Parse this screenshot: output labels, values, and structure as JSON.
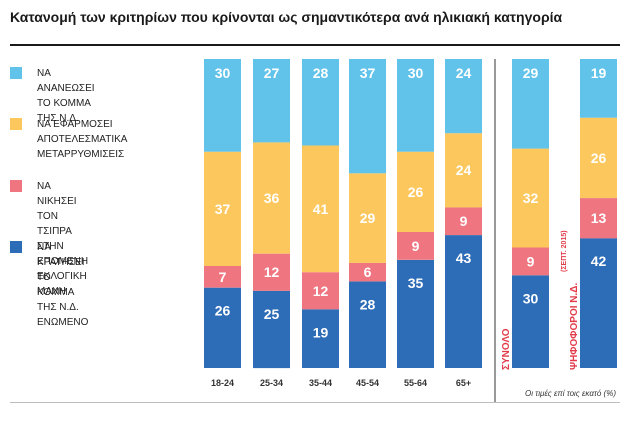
{
  "title": "Κατανομή των κριτηρίων που κρίνονται ως σημαντικότερα ανά ηλικιακή κατηγορία",
  "note": "Οι τιμές επί τοις εκατό (%)",
  "legend": [
    {
      "label": "ΝΑ ΑΝΑΝΕΩΣΕΙ\nΤΟ ΚΟΜΜΑ ΤΗΣ Ν.Δ.",
      "color": "#62c3ea"
    },
    {
      "label": "ΝΑ ΕΦΑΡΜΟΣΕΙ\nΑΠΟΤΕΛΕΣΜΑΤΙΚΑ\nΜΕΤΑΡΡΥΘΜΙΣΕΙΣ",
      "color": "#fcc75d"
    },
    {
      "label": "ΝΑ ΝΙΚΗΣΕΙ ΤΟΝ ΤΣΙΠΡΑ\nΣΤΗΝ ΕΠΟΜΕΝΗ\nΕΚΛΟΓΙΚΗ ΜΑΧΗ",
      "color": "#ef7580"
    },
    {
      "label": "ΝΑ ΚΡΑΤΗΣΕΙ\nΤΟ ΚΟΜΜΑ\nΤΗΣ Ν.Δ. ΕΝΩΜΕΝΟ",
      "color": "#2d6cb6"
    }
  ],
  "chart_data": {
    "type": "bar",
    "stacked": true,
    "orientation": "vertical",
    "unit": "%",
    "categories": [
      "18-24",
      "25-34",
      "35-44",
      "45-54",
      "55-64",
      "65+",
      "ΣΥΝΟΛΟ",
      "ΨΗΦΟΦΟΡΟΙ Ν.Δ."
    ],
    "category_sublabels": {
      "ΨΗΦΟΦΟΡΟΙ Ν.Δ.": "(ΣΕΠΤ. 2015)"
    },
    "rotated_categories": [
      "ΣΥΝΟΛΟ",
      "ΨΗΦΟΦΟΡΟΙ Ν.Δ."
    ],
    "series": [
      {
        "name": "ΝΑ ΚΡΑΤΗΣΕΙ ΤΟ ΚΟΜΜΑ ΤΗΣ Ν.Δ. ΕΝΩΜΕΝΟ",
        "color": "#2d6cb6",
        "values": [
          26,
          25,
          19,
          28,
          35,
          43,
          30,
          42
        ]
      },
      {
        "name": "ΝΑ ΝΙΚΗΣΕΙ ΤΟΝ ΤΣΙΠΡΑ ΣΤΗΝ ΕΠΟΜΕΝΗ ΕΚΛΟΓΙΚΗ ΜΑΧΗ",
        "color": "#ef7580",
        "values": [
          7,
          12,
          12,
          6,
          9,
          9,
          9,
          13
        ]
      },
      {
        "name": "ΝΑ ΕΦΑΡΜΟΣΕΙ ΑΠΟΤΕΛΕΣΜΑΤΙΚΑ ΜΕΤΑΡΡΥΘΜΙΣΕΙΣ",
        "color": "#fcc75d",
        "values": [
          37,
          36,
          41,
          29,
          26,
          24,
          32,
          26
        ]
      },
      {
        "name": "ΝΑ ΑΝΑΝΕΩΣΕΙ ΤΟ ΚΟΜΜΑ ΤΗΣ Ν.Δ.",
        "color": "#62c3ea",
        "values": [
          30,
          27,
          28,
          37,
          30,
          24,
          29,
          19
        ]
      }
    ],
    "legend_position": "left",
    "grid": false
  }
}
